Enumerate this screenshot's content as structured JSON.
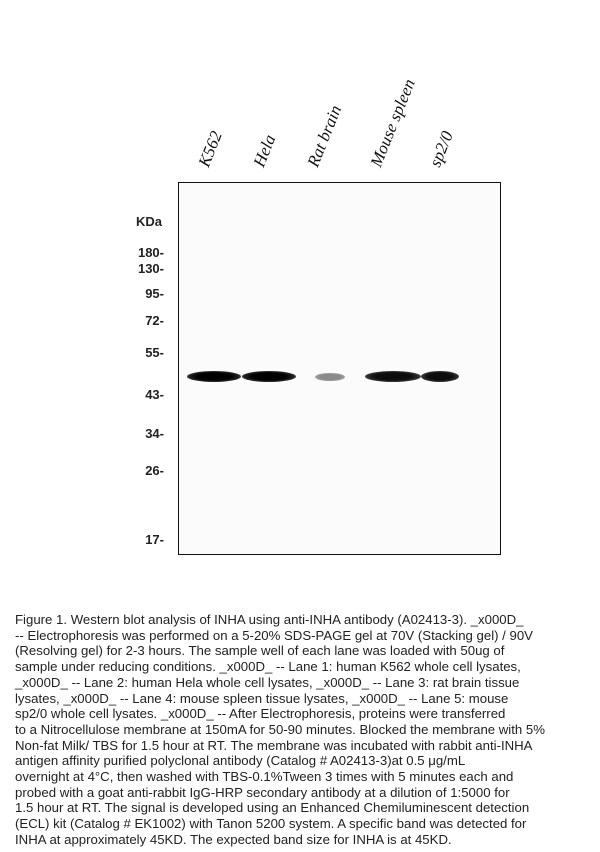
{
  "figure": {
    "lanes": [
      "K562",
      "Hela",
      "Rat brain",
      "Mouse spleen",
      "sp2/0"
    ],
    "unit_label": "KDa",
    "markers": [
      "180-",
      "130-",
      "95-",
      "72-",
      "55-",
      "43-",
      "34-",
      "26-",
      "17-"
    ],
    "band_intensity": [
      1.0,
      1.0,
      0.45,
      0.95,
      0.95
    ],
    "band_kd": 45
  },
  "caption": {
    "lines": [
      "Figure 1. Western blot analysis of INHA using anti-INHA antibody (A02413-3). _x000D_",
      "-- Electrophoresis was performed on a 5-20% SDS-PAGE gel at 70V (Stacking gel) / 90V",
      "(Resolving gel) for 2-3 hours. The sample well of each lane was loaded with 50ug of",
      "sample under reducing conditions. _x000D_ -- Lane 1: human K562 whole cell lysates,",
      "_x000D_ -- Lane 2: human Hela whole cell lysates, _x000D_ -- Lane 3: rat brain tissue",
      "lysates, _x000D_ -- Lane 4: mouse spleen tissue lysates, _x000D_ -- Lane 5: mouse",
      "sp2/0 whole cell lysates. _x000D_ -- After Electrophoresis, proteins were transferred",
      "to a Nitrocellulose membrane at 150mA for 50-90 minutes. Blocked the membrane with 5%",
      "Non-fat Milk/ TBS for 1.5 hour at RT. The membrane was incubated with rabbit anti-INHA",
      "antigen affinity purified polyclonal antibody (Catalog # A02413-3)at 0.5 μg/mL",
      "overnight at 4°C, then washed with TBS-0.1%Tween 3 times with 5 minutes each and",
      "probed with a goat anti-rabbit IgG-HRP secondary antibody at a dilution of 1:5000 for",
      "1.5 hour at RT. The signal is developed using an Enhanced Chemiluminescent detection",
      "(ECL) kit (Catalog # EK1002) with Tanon 5200 system. A specific band was detected for",
      "INHA at approximately 45KD. The expected band size for INHA is at 45KD."
    ]
  }
}
